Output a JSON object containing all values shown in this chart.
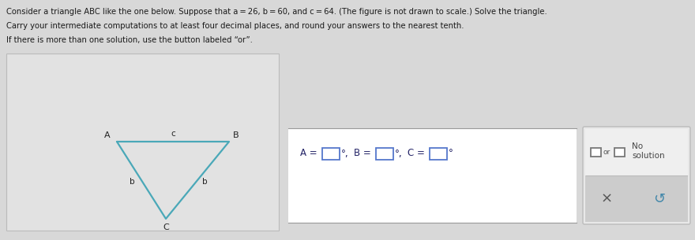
{
  "bg_color": "#d8d8d8",
  "panel_bg": "#d8d8d8",
  "text_color": "#1a1a1a",
  "title_line1": "Consider a triangle ABC like the one below. Suppose that a = 26, b = 60, and c = 64. (The figure is not drawn to scale.) Solve the triangle.",
  "title_line2": "Carry your intermediate computations to at least four decimal places, and round your answers to the nearest tenth.",
  "title_line3": "If there is more than one solution, use the button labeled “or”.",
  "triangle_color": "#4aa8b8",
  "triangle_lw": 1.6,
  "answer_box_facecolor": "#ffffff",
  "answer_box_edgecolor": "#999999",
  "input_box_edgecolor": "#5577cc",
  "input_box_facecolor": "#ffffff",
  "right_panel_outer_facecolor": "#e8e8e8",
  "right_panel_outer_edgecolor": "#bbbbbb",
  "right_panel_bottom_facecolor": "#cccccc",
  "divider_color": "#bbbbbb",
  "or_color": "#555555",
  "no_sol_color": "#444444",
  "x_color": "#555555",
  "refresh_color": "#4488aa",
  "label_color": "#222222",
  "abc_label_color": "#222266"
}
